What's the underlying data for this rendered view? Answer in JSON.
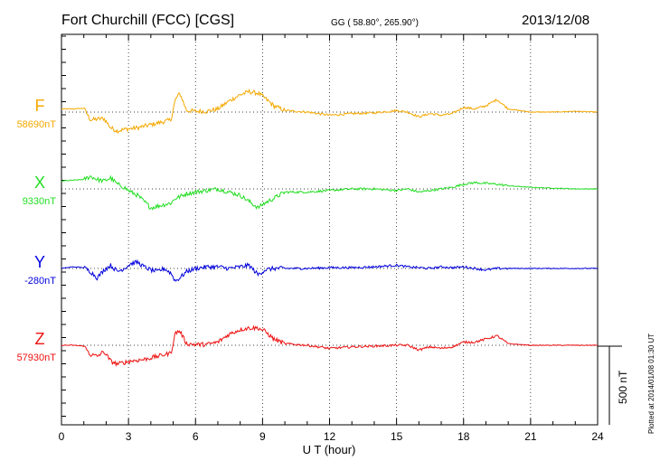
{
  "header": {
    "station": "Fort Churchill (FCC)  [CGS]",
    "coords": "GG ( 58.80°, 265.90°)",
    "date": "2013/12/08"
  },
  "side_note": "Plotted at 2014/01/08 01:30 UT",
  "chart_data": {
    "type": "line",
    "title": "Fort Churchill (FCC)  [CGS]",
    "xlabel": "U T (hour)",
    "ylabel": "",
    "xlim": [
      0,
      24
    ],
    "xticks": [
      0,
      3,
      6,
      9,
      12,
      15,
      18,
      21,
      24
    ],
    "scale_bar": {
      "label": "500 nT",
      "nT": 500
    },
    "series": [
      {
        "name": "F",
        "baseline": "58690nT",
        "color": "#f5a800",
        "x": [
          0,
          0.5,
          1,
          1.3,
          1.6,
          1.9,
          2.2,
          2.5,
          2.8,
          3.1,
          3.4,
          3.7,
          4,
          4.3,
          4.6,
          4.9,
          5.1,
          5.3,
          5.6,
          6,
          6.5,
          7,
          7.5,
          8,
          8.4,
          8.8,
          9.1,
          9.5,
          10,
          11,
          12,
          13,
          14,
          15,
          15.5,
          16,
          16.5,
          17,
          17.5,
          18,
          18.5,
          19,
          19.5,
          20,
          21,
          22,
          23,
          24
        ],
        "values": [
          20,
          20,
          24,
          -50,
          -45,
          -40,
          -100,
          -120,
          -110,
          -105,
          -100,
          -90,
          -80,
          -70,
          -60,
          -50,
          80,
          120,
          10,
          5,
          5,
          20,
          70,
          110,
          130,
          120,
          90,
          40,
          10,
          0,
          -20,
          -10,
          -5,
          10,
          0,
          -30,
          -10,
          -20,
          -10,
          30,
          20,
          40,
          80,
          20,
          0,
          0,
          5,
          0
        ],
        "unit": "nT deviation from baseline (approx.)"
      },
      {
        "name": "X",
        "baseline": "9330nT",
        "color": "#22dd22",
        "x": [
          0,
          0.5,
          1,
          1.3,
          1.6,
          1.9,
          2.2,
          2.5,
          2.8,
          3.1,
          3.4,
          3.7,
          4,
          4.3,
          4.6,
          4.9,
          5.1,
          5.3,
          5.6,
          6,
          6.5,
          7,
          7.5,
          8,
          8.4,
          8.8,
          9.1,
          9.5,
          10,
          11,
          12,
          13,
          14,
          15,
          15.5,
          16,
          16.5,
          17,
          17.5,
          18,
          18.5,
          19,
          19.5,
          20,
          21,
          22,
          23,
          24
        ],
        "values": [
          50,
          55,
          60,
          80,
          60,
          50,
          70,
          30,
          10,
          -20,
          -40,
          -80,
          -120,
          -110,
          -100,
          -90,
          -60,
          -50,
          -30,
          -20,
          -10,
          0,
          -20,
          -40,
          -80,
          -120,
          -90,
          -60,
          -20,
          -20,
          -10,
          0,
          0,
          -10,
          0,
          -20,
          -10,
          0,
          10,
          30,
          40,
          35,
          30,
          20,
          10,
          5,
          0,
          0
        ],
        "unit": "nT deviation from baseline (approx.)"
      },
      {
        "name": "Y",
        "baseline": "-280nT",
        "color": "#0000dd",
        "x": [
          0,
          0.5,
          1,
          1.3,
          1.6,
          1.9,
          2.2,
          2.5,
          2.8,
          3.1,
          3.4,
          3.7,
          4,
          4.3,
          4.6,
          4.9,
          5.1,
          5.3,
          5.6,
          6,
          6.5,
          7,
          7.5,
          8,
          8.4,
          8.8,
          9.1,
          9.5,
          10,
          11,
          12,
          13,
          14,
          15,
          15.5,
          16,
          16.5,
          17,
          17.5,
          18,
          18.5,
          19,
          19.5,
          20,
          21,
          22,
          23,
          24
        ],
        "values": [
          0,
          10,
          5,
          -20,
          -60,
          -10,
          20,
          -20,
          0,
          30,
          40,
          10,
          -10,
          -20,
          0,
          -30,
          -80,
          -60,
          -20,
          0,
          10,
          10,
          0,
          10,
          20,
          -40,
          -10,
          0,
          0,
          0,
          5,
          5,
          10,
          20,
          10,
          5,
          0,
          10,
          5,
          10,
          0,
          -10,
          0,
          0,
          0,
          0,
          0,
          0
        ],
        "unit": "nT deviation from baseline (approx.)"
      },
      {
        "name": "Z",
        "baseline": "57930nT",
        "color": "#ee1111",
        "x": [
          0,
          0.5,
          1,
          1.3,
          1.6,
          1.9,
          2.2,
          2.5,
          2.8,
          3.1,
          3.4,
          3.7,
          4,
          4.3,
          4.6,
          4.9,
          5.1,
          5.3,
          5.6,
          6,
          6.5,
          7,
          7.5,
          8,
          8.4,
          8.8,
          9.1,
          9.5,
          10,
          11,
          12,
          13,
          14,
          15,
          15.5,
          16,
          16.5,
          17,
          17.5,
          18,
          18.5,
          19,
          19.5,
          20,
          21,
          22,
          23,
          24
        ],
        "values": [
          0,
          0,
          -5,
          -60,
          -70,
          -40,
          -100,
          -120,
          -110,
          -100,
          -95,
          -90,
          -80,
          -70,
          -60,
          -50,
          80,
          90,
          10,
          5,
          5,
          20,
          70,
          100,
          110,
          110,
          90,
          40,
          10,
          0,
          -20,
          -10,
          -5,
          0,
          0,
          -30,
          -10,
          -20,
          -10,
          20,
          20,
          40,
          60,
          10,
          0,
          0,
          0,
          0
        ],
        "unit": "nT deviation from baseline (approx.)"
      }
    ]
  }
}
